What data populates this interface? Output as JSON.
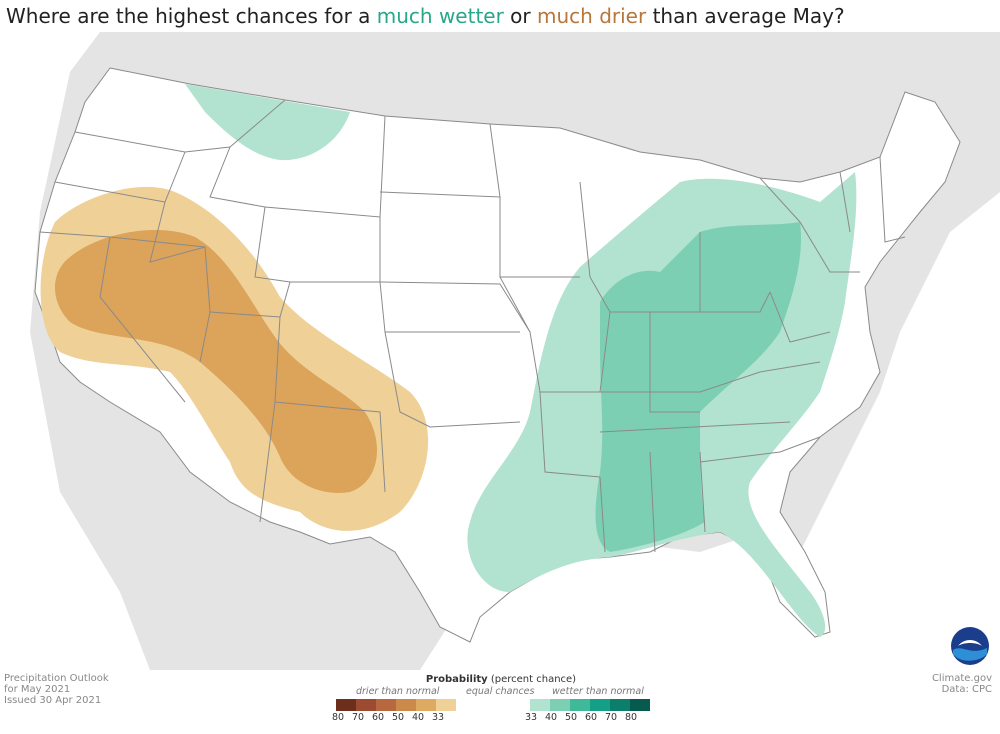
{
  "title": {
    "prefix": "Where are the highest chances for a ",
    "wetter": "much wetter",
    "middle": " or ",
    "drier": "much drier",
    "suffix": " than average May?"
  },
  "footer_left": {
    "line1": "Precipitation Outlook",
    "line2": "for May 2021",
    "line3": "Issued 30 Apr 2021"
  },
  "footer_right": {
    "line1": "Climate.gov",
    "line2": "Data: CPC"
  },
  "legend": {
    "title_bold": "Probability",
    "title_rest": " (percent chance)",
    "drier_label": "drier than normal",
    "equal_label": "equal chances",
    "wetter_label": "wetter than normal",
    "drier_colors": [
      "#6e2e1c",
      "#9c4a30",
      "#b8683e",
      "#cc8a4a",
      "#deaa62",
      "#efd198"
    ],
    "equal_color": "#ffffff",
    "wetter_colors": [
      "#b2e2d0",
      "#7dcfb4",
      "#3fb99a",
      "#14a086",
      "#0c7f6c",
      "#075a4d"
    ],
    "drier_ticks": [
      "80",
      "70",
      "60",
      "50",
      "40",
      "33"
    ],
    "wetter_ticks": [
      "33",
      "40",
      "50",
      "60",
      "70",
      "80"
    ]
  },
  "map": {
    "dry_outer_color": "#efd198",
    "dry_inner_color": "#dca35a",
    "wet_outer_color": "#b2e2d0",
    "wet_inner_color": "#7dcfb4",
    "land_color": "#ffffff",
    "outside_color": "#e4e4e4",
    "ocean_color": "#ffffff",
    "border_color": "#8a8a8a",
    "noaa_logo_colors": [
      "#1a3e8c",
      "#2f8fd6"
    ]
  }
}
